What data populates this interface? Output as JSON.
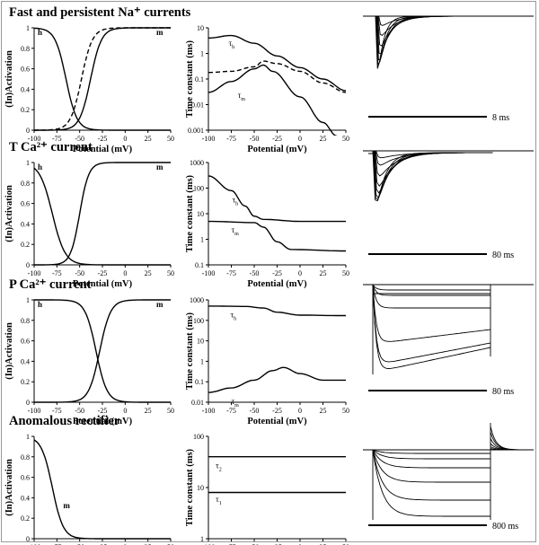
{
  "panels": [
    {
      "title": "Fast and persistent Na⁺ currents",
      "activation": {
        "ylabel": "(In)Activation",
        "xlabel": "Potential (mV)",
        "labels": [
          "h",
          "m"
        ],
        "h": {
          "v_half": -65,
          "k": 6
        },
        "m": {
          "v_half": -38,
          "k": 6
        },
        "m_dashed": {
          "v_half": -48,
          "k": 6
        }
      },
      "tau": {
        "ylabel": "Time constant (ms)",
        "xlabel": "Potential (mV)",
        "scale": "log",
        "ylim": [
          0.001,
          10
        ],
        "yticks": [
          "0.001",
          "0.01",
          "0.1",
          "1",
          "10"
        ],
        "labels": [
          "τ_h",
          "τ_m"
        ],
        "curves": [
          {
            "name": "τ_h",
            "dashed": false,
            "points": [
              [
                -100,
                4
              ],
              [
                -75,
                5
              ],
              [
                -50,
                2.5
              ],
              [
                -25,
                0.8
              ],
              [
                0,
                0.28
              ],
              [
                25,
                0.1
              ],
              [
                50,
                0.035
              ]
            ]
          },
          {
            "name": "",
            "dashed": true,
            "points": [
              [
                -100,
                0.18
              ],
              [
                -75,
                0.2
              ],
              [
                -50,
                0.3
              ],
              [
                -40,
                0.5
              ],
              [
                -25,
                0.4
              ],
              [
                0,
                0.2
              ],
              [
                25,
                0.07
              ],
              [
                50,
                0.03
              ]
            ]
          },
          {
            "name": "τ_m",
            "dashed": false,
            "points": [
              [
                -100,
                0.03
              ],
              [
                -75,
                0.08
              ],
              [
                -50,
                0.25
              ],
              [
                -40,
                0.35
              ],
              [
                -30,
                0.2
              ],
              [
                0,
                0.02
              ],
              [
                25,
                0.002
              ],
              [
                40,
                0.0006
              ]
            ]
          }
        ]
      },
      "trace_scale": "8 ms"
    },
    {
      "title": "T Ca²⁺ current",
      "activation": {
        "ylabel": "(In)Activation",
        "xlabel": "Potential (mV)",
        "labels": [
          "h",
          "m"
        ],
        "h": {
          "v_half": -80,
          "k": 7
        },
        "m": {
          "v_half": -50,
          "k": 5
        }
      },
      "tau": {
        "ylabel": "Time constant (ms)",
        "xlabel": "Potential (mV)",
        "scale": "log",
        "ylim": [
          0.1,
          1000
        ],
        "yticks": [
          "0.1",
          "1",
          "10",
          "100",
          "1000"
        ],
        "labels": [
          "τ_h",
          "τ_m"
        ],
        "curves": [
          {
            "name": "τ_h",
            "dashed": false,
            "points": [
              [
                -100,
                300
              ],
              [
                -75,
                80
              ],
              [
                -60,
                20
              ],
              [
                -50,
                8
              ],
              [
                -40,
                6
              ],
              [
                0,
                5
              ],
              [
                50,
                5
              ]
            ]
          },
          {
            "name": "τ_m",
            "dashed": false,
            "points": [
              [
                -100,
                5
              ],
              [
                -50,
                4.5
              ],
              [
                -40,
                3
              ],
              [
                -25,
                0.8
              ],
              [
                -10,
                0.4
              ],
              [
                50,
                0.35
              ]
            ]
          }
        ]
      },
      "trace_scale": "80 ms"
    },
    {
      "title": "P Ca²⁺ current",
      "activation": {
        "ylabel": "(In)Activation",
        "xlabel": "Potential (mV)",
        "labels": [
          "h",
          "m"
        ],
        "h": {
          "v_half": -32,
          "k": 6
        },
        "m": {
          "v_half": -28,
          "k": 6
        }
      },
      "tau": {
        "ylabel": "Time constant (ms)",
        "xlabel": "Potential (mV)",
        "scale": "log",
        "ylim": [
          0.01,
          1000
        ],
        "yticks": [
          "0.01",
          "0.1",
          "1",
          "10",
          "100",
          "1000"
        ],
        "labels": [
          "τ_h",
          "τ_m"
        ],
        "curves": [
          {
            "name": "τ_h",
            "dashed": false,
            "points": [
              [
                -100,
                500
              ],
              [
                -60,
                480
              ],
              [
                -40,
                400
              ],
              [
                -25,
                250
              ],
              [
                0,
                180
              ],
              [
                50,
                170
              ]
            ]
          },
          {
            "name": "τ_m",
            "dashed": false,
            "points": [
              [
                -100,
                0.03
              ],
              [
                -75,
                0.05
              ],
              [
                -50,
                0.12
              ],
              [
                -30,
                0.35
              ],
              [
                -18,
                0.5
              ],
              [
                0,
                0.25
              ],
              [
                25,
                0.12
              ],
              [
                50,
                0.12
              ]
            ]
          }
        ]
      },
      "trace_scale": "80 ms"
    },
    {
      "title": "Anomalous rectifier",
      "activation": {
        "ylabel": "(In)Activation",
        "xlabel": "Potential (mV)",
        "labels": [
          "m"
        ],
        "m_inact": {
          "v_half": -80,
          "k": 6
        }
      },
      "tau": {
        "ylabel": "Time constant (ms)",
        "xlabel": "Potential (mV)",
        "scale": "log",
        "ylim": [
          1,
          100
        ],
        "yticks": [
          "1",
          "10",
          "100"
        ],
        "labels": [
          "τ_2",
          "τ_1"
        ],
        "curves": [
          {
            "name": "τ_2",
            "dashed": false,
            "points": [
              [
                -100,
                40
              ],
              [
                50,
                40
              ]
            ]
          },
          {
            "name": "τ_1",
            "dashed": false,
            "points": [
              [
                -100,
                8
              ],
              [
                50,
                8
              ]
            ]
          }
        ]
      },
      "trace_scale": "800 ms"
    }
  ],
  "common": {
    "xticks": [
      -100,
      -75,
      -50,
      -25,
      0,
      25,
      50
    ],
    "act_yticks": [
      "0",
      "0.2",
      "0.4",
      "0.6",
      "0.8",
      "1"
    ]
  }
}
